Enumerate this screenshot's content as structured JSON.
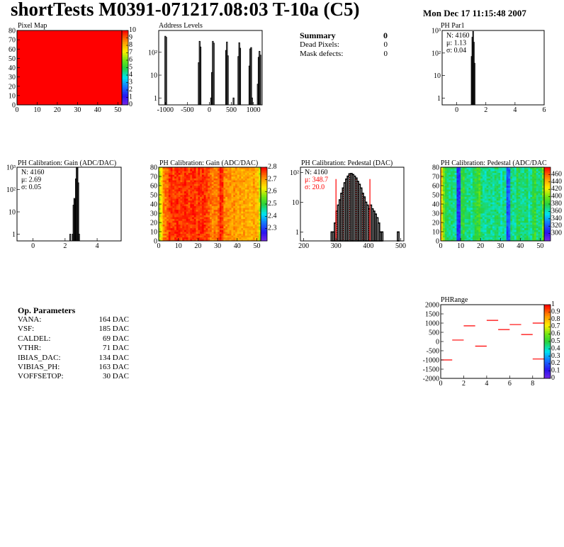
{
  "header": {
    "title": "shortTests M0391-071217.08:03 T-10a (C5)",
    "date": "Mon Dec 17 11:15:48 2007"
  },
  "summary": {
    "title": "Summary",
    "total": "0",
    "rows": [
      {
        "label": "Dead Pixels:",
        "value": "0"
      },
      {
        "label": "Mask defects:",
        "value": "0"
      }
    ]
  },
  "op_parameters": {
    "title": "Op. Parameters",
    "rows": [
      {
        "label": "VANA:",
        "value": "164 DAC"
      },
      {
        "label": "VSF:",
        "value": "185 DAC"
      },
      {
        "label": "CALDEL:",
        "value": "69 DAC"
      },
      {
        "label": "VTHR:",
        "value": "71 DAC"
      },
      {
        "label": "IBIAS_DAC:",
        "value": "134 DAC"
      },
      {
        "label": "VIBIAS_PH:",
        "value": "163 DAC"
      },
      {
        "label": "VOFFSETOP:",
        "value": "30 DAC"
      }
    ]
  },
  "colors": {
    "hist_line": "#000000",
    "fit_line": "#ff0000",
    "pixel_map_fill": "#ff0000"
  },
  "chart_data": [
    {
      "id": "pixelmap",
      "type": "heatmap",
      "title": "Pixel Map",
      "xlim": [
        0,
        52
      ],
      "ylim": [
        0,
        80
      ],
      "zlim": [
        0,
        10
      ],
      "xticks": [
        0,
        10,
        20,
        30,
        40,
        50
      ],
      "yticks": [
        0,
        10,
        20,
        30,
        40,
        50,
        60,
        70,
        80
      ],
      "zticks": [
        0,
        1,
        2,
        3,
        4,
        5,
        6,
        7,
        8,
        9,
        10
      ],
      "uniform_value": 10
    },
    {
      "id": "addr",
      "type": "bar",
      "title": "Address Levels",
      "xlim": [
        -1150,
        1200
      ],
      "ylim": [
        0.5,
        900
      ],
      "log_y": true,
      "xticks": [
        -1000,
        -500,
        0,
        500,
        1000
      ],
      "yticks": [
        {
          "v": 1,
          "t": "1"
        },
        {
          "v": 10,
          "t": "10"
        },
        {
          "v": 100,
          "t": "10²"
        }
      ],
      "binw": 20,
      "bins": [
        [
          -1010,
          500
        ],
        [
          -990,
          450
        ],
        [
          -250,
          35
        ],
        [
          -230,
          300
        ],
        [
          -210,
          170
        ],
        [
          30,
          1
        ],
        [
          50,
          13
        ],
        [
          70,
          300
        ],
        [
          90,
          250
        ],
        [
          370,
          120
        ],
        [
          390,
          280
        ],
        [
          410,
          70
        ],
        [
          540,
          1
        ],
        [
          650,
          65
        ],
        [
          670,
          260
        ],
        [
          690,
          150
        ],
        [
          900,
          25
        ],
        [
          920,
          140
        ],
        [
          940,
          160
        ],
        [
          960,
          1
        ],
        [
          1090,
          4
        ],
        [
          1110,
          60
        ],
        [
          1130,
          110
        ],
        [
          1150,
          75
        ]
      ]
    },
    {
      "id": "phpar1",
      "type": "bar",
      "title": "PH Par1",
      "xlim": [
        -1,
        6
      ],
      "ylim": [
        0.5,
        1000
      ],
      "log_y": true,
      "xticks": [
        0,
        2,
        4,
        6
      ],
      "yticks": [
        {
          "v": 1,
          "t": "1"
        },
        {
          "v": 10,
          "t": "10"
        },
        {
          "v": 100,
          "t": "10²"
        },
        {
          "v": 1000,
          "t": "10³"
        }
      ],
      "binw": 0.05,
      "bins": [
        [
          1.0,
          70
        ],
        [
          1.05,
          500
        ],
        [
          1.1,
          900
        ],
        [
          1.15,
          300
        ],
        [
          1.2,
          35
        ]
      ],
      "stats": [
        {
          "t": "N: 4160",
          "red": false
        },
        {
          "t": "μ: 1.13",
          "red": false
        },
        {
          "t": "σ: 0.04",
          "red": false
        }
      ]
    },
    {
      "id": "gain",
      "type": "bar",
      "title": "PH Calibration: Gain (ADC/DAC)",
      "xlim": [
        -1,
        5.5
      ],
      "ylim": [
        0.5,
        1000
      ],
      "log_y": true,
      "xticks": [
        0,
        2,
        4
      ],
      "yticks": [
        {
          "v": 1,
          "t": "1"
        },
        {
          "v": 10,
          "t": "10"
        },
        {
          "v": 100,
          "t": "10²"
        },
        {
          "v": 1000,
          "t": "10³"
        }
      ],
      "binw": 0.05,
      "bins": [
        [
          2.3,
          1
        ],
        [
          2.45,
          1
        ],
        [
          2.5,
          20
        ],
        [
          2.55,
          40
        ],
        [
          2.6,
          35
        ],
        [
          2.65,
          300
        ],
        [
          2.7,
          1000
        ],
        [
          2.75,
          1000
        ],
        [
          2.8,
          200
        ],
        [
          2.85,
          1
        ]
      ],
      "stats": [
        {
          "t": "N: 4160",
          "red": false
        },
        {
          "t": "μ: 2.69",
          "red": false
        },
        {
          "t": "σ: 0.05",
          "red": false
        }
      ]
    },
    {
      "id": "gainmap",
      "type": "heatmap",
      "title": "PH Calibration: Gain (ADC/DAC)",
      "xlim": [
        0,
        52
      ],
      "ylim": [
        0,
        80
      ],
      "zlim": [
        2.2,
        2.8
      ],
      "xticks": [
        0,
        10,
        20,
        30,
        40,
        50
      ],
      "yticks": [
        0,
        10,
        20,
        30,
        40,
        50,
        60,
        70,
        80
      ],
      "zticks": [
        2.3,
        2.4,
        2.5,
        2.6,
        2.7,
        2.8
      ],
      "column_means": [
        2.6,
        2.64,
        2.72,
        2.73,
        2.74,
        2.77,
        2.77,
        2.76,
        2.77,
        2.78,
        2.77,
        2.76,
        2.77,
        2.78,
        2.77,
        2.76,
        2.77,
        2.78,
        2.77,
        2.76,
        2.78,
        2.77,
        2.78,
        2.77,
        2.76,
        2.75,
        2.73,
        2.72,
        2.73,
        2.72,
        2.74,
        2.78,
        2.77,
        2.72,
        2.71,
        2.72,
        2.71,
        2.7,
        2.71,
        2.7,
        2.69,
        2.7,
        2.69,
        2.7,
        2.69,
        2.7,
        2.68,
        2.69,
        2.7,
        2.69,
        2.68,
        2.6
      ]
    },
    {
      "id": "ped",
      "type": "bar",
      "title": "PH Calibration: Pedestal (DAC)",
      "xlim": [
        190,
        510
      ],
      "ylim": [
        0.5,
        150
      ],
      "log_y": true,
      "xticks": [
        200,
        300,
        400,
        500
      ],
      "yticks": [
        {
          "v": 1,
          "t": "1"
        },
        {
          "v": 10,
          "t": "10"
        },
        {
          "v": 100,
          "t": "10²"
        }
      ],
      "binw": 5,
      "bins": [
        [
          285,
          1
        ],
        [
          290,
          1
        ],
        [
          295,
          2
        ],
        [
          300,
          5
        ],
        [
          305,
          8
        ],
        [
          310,
          12
        ],
        [
          315,
          20
        ],
        [
          320,
          30
        ],
        [
          325,
          45
        ],
        [
          330,
          60
        ],
        [
          335,
          75
        ],
        [
          340,
          90
        ],
        [
          345,
          92
        ],
        [
          350,
          85
        ],
        [
          355,
          75
        ],
        [
          360,
          65
        ],
        [
          365,
          50
        ],
        [
          370,
          40
        ],
        [
          375,
          30
        ],
        [
          380,
          20
        ],
        [
          385,
          15
        ],
        [
          390,
          10
        ],
        [
          395,
          8
        ],
        [
          400,
          6
        ],
        [
          405,
          8
        ],
        [
          410,
          6
        ],
        [
          415,
          5
        ],
        [
          420,
          4
        ],
        [
          425,
          3
        ],
        [
          430,
          2
        ],
        [
          435,
          1
        ],
        [
          440,
          1
        ],
        [
          490,
          1
        ]
      ],
      "fit_range": [
        300,
        405
      ],
      "stats": [
        {
          "t": "N: 4160",
          "red": false
        },
        {
          "t": "μ: 348.7",
          "red": true
        },
        {
          "t": "σ: 20.0",
          "red": true
        }
      ]
    },
    {
      "id": "pedmap",
      "type": "heatmap",
      "title": "PH Calibration: Pedestal (ADC/DAC",
      "xlim": [
        0,
        52
      ],
      "ylim": [
        0,
        80
      ],
      "zlim": [
        280,
        480
      ],
      "xticks": [
        0,
        10,
        20,
        30,
        40,
        50
      ],
      "yticks": [
        0,
        10,
        20,
        30,
        40,
        50,
        60,
        70,
        80
      ],
      "zticks": [
        300,
        320,
        340,
        360,
        380,
        400,
        420,
        440,
        460
      ],
      "column_means": [
        430,
        400,
        380,
        375,
        370,
        372,
        368,
        365,
        310,
        315,
        380,
        385,
        372,
        368,
        370,
        365,
        375,
        380,
        385,
        390,
        372,
        368,
        365,
        370,
        372,
        368,
        366,
        372,
        375,
        368,
        360,
        370,
        365,
        318,
        325,
        372,
        368,
        365,
        380,
        375,
        370,
        368,
        372,
        375,
        365,
        368,
        380,
        385,
        370,
        372,
        375,
        400
      ]
    },
    {
      "id": "phrange",
      "type": "heatmap",
      "title": "PHRange",
      "xlim": [
        0,
        9
      ],
      "ylim": [
        -2000,
        2000
      ],
      "zlim": [
        0,
        1
      ],
      "xticks": [
        0,
        2,
        4,
        6,
        8
      ],
      "yticks": [
        -2000,
        -1500,
        -1000,
        -500,
        0,
        500,
        1000,
        1500,
        2000
      ],
      "zticks": [
        0,
        0.1,
        0.2,
        0.3,
        0.4,
        0.5,
        0.6,
        0.7,
        0.8,
        0.9,
        1
      ],
      "segments": [
        [
          0,
          -1000
        ],
        [
          1,
          80
        ],
        [
          2,
          850
        ],
        [
          3,
          -250
        ],
        [
          4,
          1150
        ],
        [
          5,
          650
        ],
        [
          6,
          920
        ],
        [
          7,
          380
        ],
        [
          8,
          1000
        ],
        [
          8,
          -950
        ]
      ]
    }
  ]
}
